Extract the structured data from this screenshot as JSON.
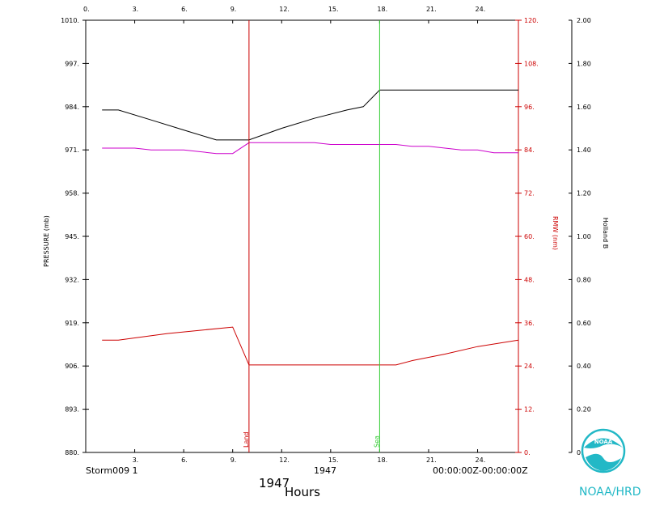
{
  "chart_data": {
    "type": "line",
    "xlabel": "Hours",
    "xlim": [
      0,
      26.5
    ],
    "x_ticks": [
      0,
      3,
      6,
      9,
      12,
      15,
      18,
      21,
      24
    ],
    "x_tick_labels": [
      "0.",
      "3.",
      "6.",
      "9.",
      "12.",
      "15.",
      "18.",
      "21.",
      "24."
    ],
    "axes": {
      "pressure": {
        "label": "PRESSURE (mb)",
        "ylim": [
          880,
          1010
        ],
        "ticks": [
          880,
          893,
          906,
          919,
          932,
          945,
          958,
          971,
          984,
          997,
          1010
        ],
        "tick_labels": [
          "880.",
          "893.",
          "906.",
          "919.",
          "932.",
          "945.",
          "958.",
          "971.",
          "984.",
          "997.",
          "1010."
        ],
        "color": "#000000"
      },
      "rmw": {
        "label": "RMW (nm)",
        "ylim": [
          0,
          120
        ],
        "ticks": [
          0,
          12,
          24,
          36,
          48,
          60,
          72,
          84,
          96,
          108,
          120
        ],
        "tick_labels": [
          "0.",
          "12.",
          "24.",
          "36.",
          "48.",
          "60.",
          "72.",
          "84.",
          "96.",
          "108.",
          "120."
        ],
        "color": "#cc0000"
      },
      "holland_b": {
        "label": "Holland B",
        "ylim": [
          0,
          2.0
        ],
        "ticks": [
          0,
          0.2,
          0.4,
          0.6,
          0.8,
          1.0,
          1.2,
          1.4,
          1.6,
          1.8,
          2.0
        ],
        "tick_labels": [
          "0.00",
          "0.20",
          "0.40",
          "0.60",
          "0.80",
          "1.00",
          "1.20",
          "1.40",
          "1.60",
          "1.80",
          "2.00"
        ],
        "color": "#000000"
      }
    },
    "series": [
      {
        "axis": "pressure",
        "color": "#000000",
        "x": [
          1,
          2,
          4,
          6,
          8,
          10,
          12,
          14,
          16,
          17,
          18,
          20,
          22,
          24,
          26.5
        ],
        "values": [
          983,
          983,
          980,
          977,
          974,
          974,
          977.5,
          980.5,
          983,
          984,
          989,
          989,
          989,
          989,
          989
        ]
      },
      {
        "axis": "rmw",
        "color": "#cc00cc",
        "x": [
          1,
          3,
          4,
          6,
          8,
          9,
          10,
          12,
          14,
          15,
          18,
          19,
          20,
          21,
          23,
          24,
          25,
          26.5
        ],
        "values": [
          84.5,
          84.5,
          84,
          84,
          83,
          83,
          86,
          86,
          86,
          85.5,
          85.5,
          85.5,
          85,
          85,
          84,
          84,
          83.2,
          83.2
        ]
      },
      {
        "axis": "holland_b",
        "color": "#cc0000",
        "x": [
          1,
          2,
          3,
          5,
          7,
          9,
          10,
          12,
          14,
          16,
          18,
          19,
          20,
          22,
          24,
          26.5
        ],
        "values": [
          0.52,
          0.52,
          0.53,
          0.55,
          0.565,
          0.58,
          0.405,
          0.405,
          0.405,
          0.405,
          0.405,
          0.405,
          0.425,
          0.455,
          0.49,
          0.52
        ]
      }
    ],
    "annotations": [
      {
        "label": "Land",
        "x": 10,
        "color": "#cc0000"
      },
      {
        "label": "Sea",
        "x": 18,
        "color": "#33cc33"
      }
    ]
  },
  "footer": {
    "storm": "Storm009  1",
    "year_center": "1947",
    "time_range": "00:00:00Z-00:00:00Z",
    "year_bottom": "1947",
    "hours_label": "Hours",
    "agency": "NOAA/HRD",
    "logo_text": "NOAA"
  }
}
